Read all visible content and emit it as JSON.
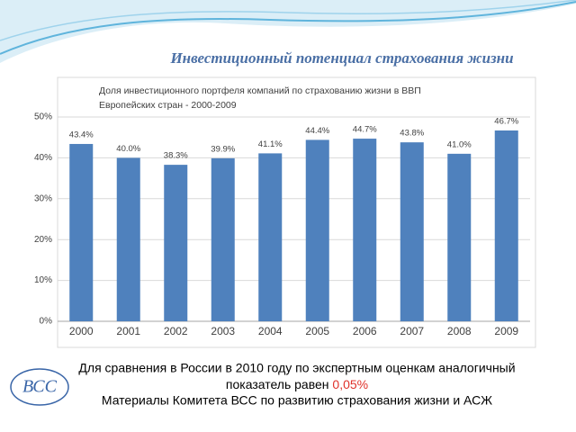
{
  "slide_title": "Инвестиционный потенциал страхования жизни",
  "chart_data": {
    "type": "bar",
    "title_lines": [
      "Доля инвестиционного портфеля компаний по страхованию жизни в ВВП",
      "Европейских стран - 2000-2009"
    ],
    "categories": [
      "2000",
      "2001",
      "2002",
      "2003",
      "2004",
      "2005",
      "2006",
      "2007",
      "2008",
      "2009"
    ],
    "values": [
      43.4,
      40.0,
      38.3,
      39.9,
      41.1,
      44.4,
      44.7,
      43.8,
      41.0,
      46.7
    ],
    "value_labels": [
      "43.4%",
      "40.0%",
      "38.3%",
      "39.9%",
      "41.1%",
      "44.4%",
      "44.7%",
      "43.8%",
      "41.0%",
      "46.7%"
    ],
    "color": "#4f81bd",
    "ylim": [
      0,
      50
    ],
    "yticks": [
      {
        "value": 0,
        "label": "0%"
      },
      {
        "value": 10,
        "label": "10%"
      },
      {
        "value": 20,
        "label": "20%"
      },
      {
        "value": 30,
        "label": "30%"
      },
      {
        "value": 40,
        "label": "40%"
      },
      {
        "value": 50,
        "label": "50%"
      }
    ],
    "grid": true
  },
  "note": {
    "line1": "Для сравнения в России в 2010 году по экспертным оценкам аналогичный",
    "line2": "показатель равен ",
    "highlight": "0,05%"
  },
  "source": "Материалы Комитета ВСС по развитию страхования жизни и АСЖ",
  "logo": "ВСС"
}
